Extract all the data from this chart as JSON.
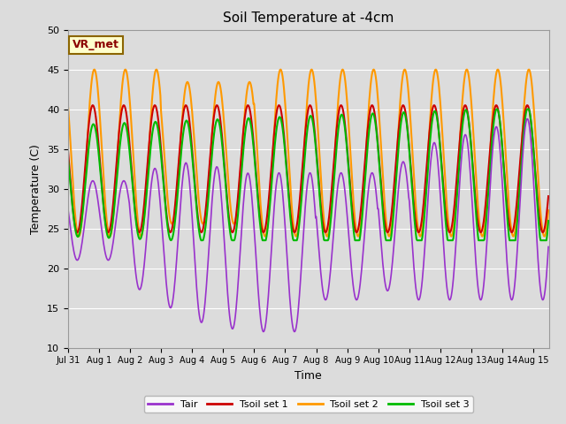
{
  "title": "Soil Temperature at -4cm",
  "xlabel": "Time",
  "ylabel": "Temperature (C)",
  "ylim": [
    10,
    50
  ],
  "xlim_days": 15.5,
  "background_color": "#dcdcdc",
  "plot_bg_color": "#dcdcdc",
  "annotation_text": "VR_met",
  "annotation_color": "#8B0000",
  "annotation_bg": "#ffffcc",
  "annotation_border": "#8B6500",
  "tick_labels": [
    "Jul 31",
    "Aug 1",
    "Aug 2",
    "Aug 3",
    "Aug 4",
    "Aug 5",
    "Aug 6",
    "Aug 7",
    "Aug 8",
    "Aug 9",
    "Aug 10",
    "Aug 11",
    "Aug 12",
    "Aug 13",
    "Aug 14",
    "Aug 15"
  ],
  "colors": {
    "Tair": "#9932CC",
    "Tsoil1": "#cc0000",
    "Tsoil2": "#ff9900",
    "Tsoil3": "#00bb00"
  },
  "legend_labels": [
    "Tair",
    "Tsoil set 1",
    "Tsoil set 2",
    "Tsoil set 3"
  ],
  "yticks": [
    10,
    15,
    20,
    25,
    30,
    35,
    40,
    45,
    50
  ]
}
